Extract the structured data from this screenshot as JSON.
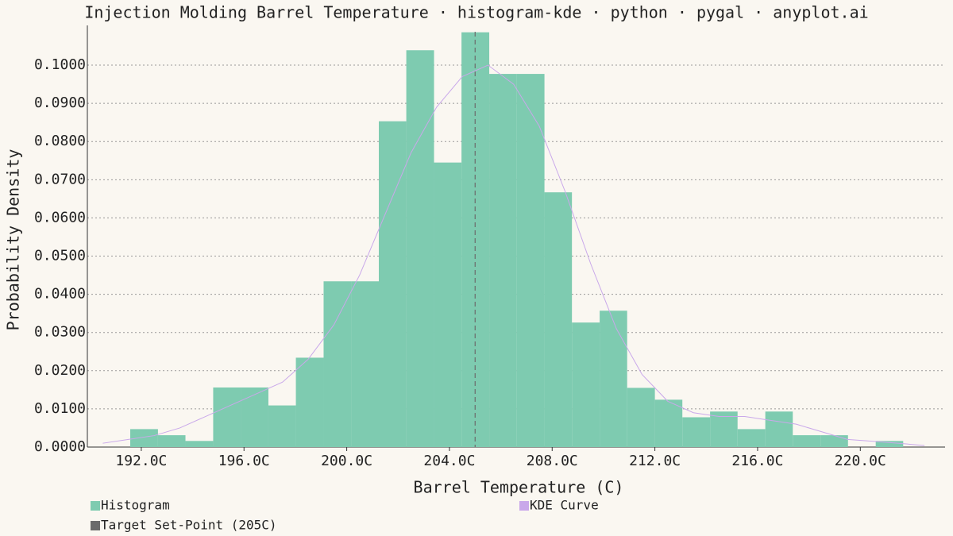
{
  "chart_data": {
    "type": "histogram",
    "title": "Injection Molding Barrel Temperature · histogram-kde · python · pygal · anyplot.ai",
    "x_label": "Barrel Temperature (C)",
    "y_label": "Probability Density",
    "bins": [
      191.57,
      192.65,
      193.72,
      194.8,
      195.87,
      196.95,
      198.02,
      199.1,
      200.17,
      201.25,
      202.32,
      203.4,
      204.47,
      205.55,
      206.62,
      207.7,
      208.77,
      209.85,
      210.92,
      212.0,
      213.07,
      214.15,
      215.22,
      216.3,
      217.37,
      218.45,
      219.52,
      220.6,
      221.67
    ],
    "series": [
      {
        "name": "Histogram",
        "color": "#7ecbb0",
        "values": [
          0.0047,
          0.0031,
          0.0016,
          0.0156,
          0.0156,
          0.0109,
          0.0234,
          0.0434,
          0.0434,
          0.0853,
          0.1039,
          0.0745,
          0.1086,
          0.0977,
          0.0977,
          0.0667,
          0.0326,
          0.0357,
          0.0155,
          0.0124,
          0.0078,
          0.0093,
          0.0047,
          0.0093,
          0.0031,
          0.0031,
          0,
          0.0016
        ]
      },
      {
        "name": "KDE Curve",
        "color": "#c9a8ea",
        "x": [
          190.5,
          191.5,
          192.5,
          193.5,
          194.5,
          195.5,
          196.5,
          197.5,
          198.5,
          199.5,
          200.5,
          201.5,
          202.5,
          203.5,
          204.5,
          205.5,
          206.5,
          207.5,
          208.5,
          209.5,
          210.5,
          211.5,
          212.5,
          213.5,
          214.5,
          215.5,
          216.5,
          217.5,
          218.5,
          219.5,
          220.5,
          221.5,
          222.5
        ],
        "values": [
          0.001,
          0.002,
          0.003,
          0.005,
          0.008,
          0.011,
          0.014,
          0.017,
          0.023,
          0.032,
          0.045,
          0.061,
          0.077,
          0.089,
          0.097,
          0.1,
          0.095,
          0.084,
          0.067,
          0.048,
          0.031,
          0.019,
          0.012,
          0.009,
          0.008,
          0.008,
          0.007,
          0.006,
          0.004,
          0.002,
          0.0015,
          0.001,
          0.0004
        ]
      },
      {
        "name": "Target Set-Point (205C)",
        "color": "#6b6b6b",
        "x": 205
      }
    ],
    "xlim": [
      189.9,
      223.3
    ],
    "ylim": [
      0,
      0.1104
    ],
    "xticks": [
      {
        "value": 192,
        "label": "192.0C"
      },
      {
        "value": 196,
        "label": "196.0C"
      },
      {
        "value": 200,
        "label": "200.0C"
      },
      {
        "value": 204,
        "label": "204.0C"
      },
      {
        "value": 208,
        "label": "208.0C"
      },
      {
        "value": 212,
        "label": "212.0C"
      },
      {
        "value": 216,
        "label": "216.0C"
      },
      {
        "value": 220,
        "label": "220.0C"
      }
    ],
    "yticks": [
      {
        "value": 0,
        "label": "0.0000"
      },
      {
        "value": 0.01,
        "label": "0.0100"
      },
      {
        "value": 0.02,
        "label": "0.0200"
      },
      {
        "value": 0.03,
        "label": "0.0300"
      },
      {
        "value": 0.04,
        "label": "0.0400"
      },
      {
        "value": 0.05,
        "label": "0.0500"
      },
      {
        "value": 0.06,
        "label": "0.0600"
      },
      {
        "value": 0.07,
        "label": "0.0700"
      },
      {
        "value": 0.08,
        "label": "0.0800"
      },
      {
        "value": 0.09,
        "label": "0.0900"
      },
      {
        "value": 0.1,
        "label": "0.1000"
      }
    ],
    "grid": true
  }
}
